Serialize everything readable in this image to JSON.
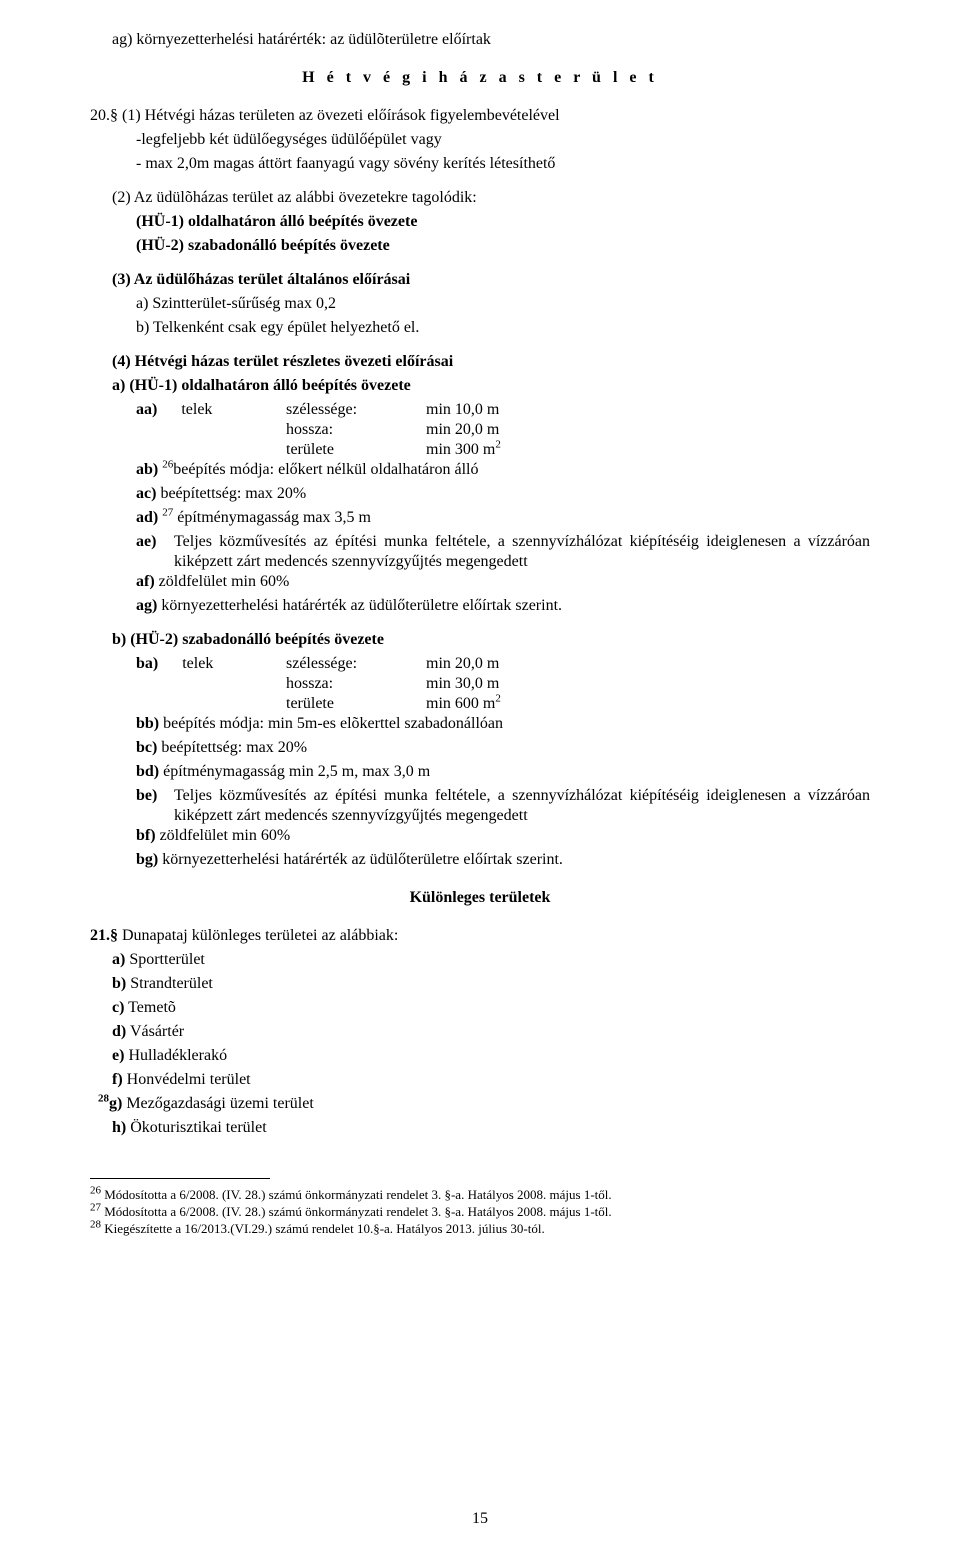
{
  "top_line": "ag)  környezetterhelési határérték: az üdülõterületre előírtak",
  "heading1": "H é t v é g i   h á z a s   t e r ü l e t",
  "s20_p1": "20.§ (1) Hétvégi házas területen az övezeti előírások figyelembevételével",
  "s20_p1_a": "-legfeljebb két üdülőegységes üdülőépület vagy",
  "s20_p1_b": "- max 2,0m magas áttört faanyagú vagy sövény kerítés létesíthető",
  "s20_p2": "(2) Az üdülõházas terület az alábbi övezetekre tagolódik:",
  "s20_p2_a": "(HÜ-1) oldalhatáron álló beépítés övezete",
  "s20_p2_b": "(HÜ-2) szabadonálló beépítés övezete",
  "s20_p3": "(3) Az üdülőházas terület általános előírásai",
  "s20_p3_a": "a) Szintterület-sűrűség max 0,2",
  "s20_p3_b": "b) Telkenként csak egy épület helyezhető el.",
  "s20_p4": "(4) Hétvégi házas terület részletes övezeti előírásai",
  "s20_p4_a": "a) (HÜ-1) oldalhatáron álló beépítés övezete",
  "hu1_aa_lbl": "aa)",
  "hu1_telek": "telek",
  "hu1_sz_k": "szélessége:",
  "hu1_sz_v": "min 10,0 m",
  "hu1_h_k": "hossza:",
  "hu1_h_v": "min 20,0 m",
  "hu1_t_k": "területe",
  "hu1_t_v": "min 300 m",
  "hu1_t_sup": "2",
  "hu1_ab": "beépítés módja: előkert nélkül oldalhatáron álló",
  "hu1_ab_lbl": "ab) ",
  "hu1_ab_sup": "26",
  "hu1_ac": "ac) beépítettség: max 20%",
  "hu1_ad_lbl": "ad) ",
  "hu1_ad_sup": "27",
  "hu1_ad": " építménymagasság max 3,5 m",
  "hu1_ae_lbl": "ae)",
  "hu1_ae": "Teljes közművesítés az építési munka feltétele, a szennyvízhálózat kiépítéséig ideiglenesen a vízzáróan kiképzett zárt medencés szennyvízgyűjtés megengedett",
  "hu1_af": "af) zöldfelület min 60%",
  "hu1_ag": "ag) környezetterhelési határérték az üdülőterületre előírtak szerint.",
  "s20_p4_b": "b) (HÜ-2) szabadonálló beépítés  övezete",
  "hu2_ba_lbl": "ba)",
  "hu2_telek": "telek",
  "hu2_sz_k": "szélessége:",
  "hu2_sz_v": "min 20,0 m",
  "hu2_h_k": "hossza:",
  "hu2_h_v": "min 30,0 m",
  "hu2_t_k": "területe",
  "hu2_t_v": "min 600 m",
  "hu2_t_sup": "2",
  "hu2_bb": "bb) beépítés módja: min 5m-es elõkerttel szabadonállóan",
  "hu2_bc": "bc) beépítettség: max 20%",
  "hu2_bd": "bd) építménymagasság min 2,5 m, max 3,0 m",
  "hu2_be_lbl": "be)",
  "hu2_be": "Teljes közművesítés az építési munka feltétele, a szennyvízhálózat kiépítéséig ideiglenesen a vízzáróan kiképzett zárt medencés szennyvízgyűjtés megengedett",
  "hu2_bf": "bf) zöldfelület min 60%",
  "hu2_bg": "bg) környezetterhelési határérték az üdülőterületre előírtak szerint.",
  "heading2": "Különleges területek",
  "s21": "21.§ Dunapataj különleges területei az alábbiak:",
  "s21_a": "a) Sportterület",
  "s21_b": "b) Strandterület",
  "s21_c": "c) Temetõ",
  "s21_d": "d) Vásártér",
  "s21_e": "e) Hulladéklerakó",
  "s21_f": "f) Honvédelmi terület",
  "s21_g_sup": "28",
  "s21_g": "g) Mezőgazdasági üzemi terület",
  "s21_h": "h) Ökoturisztikai terület",
  "fn26": " Módosította a 6/2008. (IV. 28.) számú önkormányzati rendelet 3. §-a. Hatályos 2008. május 1-től.",
  "fn27": " Módosította a 6/2008. (IV. 28.) számú önkormányzati rendelet 3. §-a. Hatályos 2008. május 1-től.",
  "fn28": " Kiegészítette a 16/2013.(VI.29.) számú rendelet 10.§-a. Hatályos 2013. július 30-tól.",
  "fn26_n": "26",
  "fn27_n": "27",
  "fn28_n": "28",
  "page_number": "15"
}
